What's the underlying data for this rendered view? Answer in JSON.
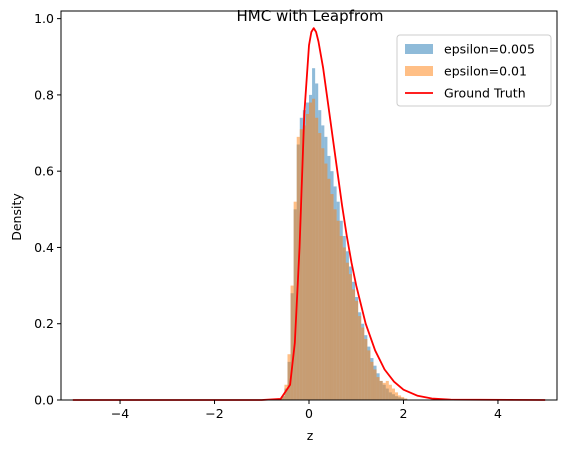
{
  "chart_data": {
    "type": "histogram",
    "title": "HMC with Leapfrom",
    "xlabel": "z",
    "ylabel": "Density",
    "xlim": [
      -5.25,
      5.25
    ],
    "ylim": [
      0.0,
      1.02
    ],
    "xticks": [
      -4,
      -2,
      0,
      2,
      4
    ],
    "xtick_labels": [
      "−4",
      "−2",
      "0",
      "2",
      "4"
    ],
    "yticks": [
      0.0,
      0.2,
      0.4,
      0.6,
      0.8,
      1.0
    ],
    "ytick_labels": [
      "0.0",
      "0.2",
      "0.4",
      "0.6",
      "0.8",
      "1.0"
    ],
    "legend_position": "top-right",
    "series": [
      {
        "name": "epsilon=0.005",
        "kind": "histogram",
        "color": "#1f77b4",
        "alpha": 0.5,
        "bin_start": -0.65,
        "bin_width": 0.065,
        "values": [
          0.0,
          0.01,
          0.03,
          0.1,
          0.28,
          0.5,
          0.67,
          0.74,
          0.76,
          0.78,
          0.8,
          0.87,
          0.83,
          0.76,
          0.72,
          0.69,
          0.64,
          0.6,
          0.56,
          0.52,
          0.47,
          0.43,
          0.39,
          0.35,
          0.31,
          0.27,
          0.23,
          0.2,
          0.17,
          0.14,
          0.11,
          0.09,
          0.07,
          0.05,
          0.04,
          0.03,
          0.02,
          0.015,
          0.01,
          0.007,
          0.005,
          0.003,
          0.0
        ]
      },
      {
        "name": "epsilon=0.01",
        "kind": "histogram",
        "color": "#ff7f0e",
        "alpha": 0.5,
        "bin_start": -0.65,
        "bin_width": 0.065,
        "values": [
          0.0,
          0.01,
          0.04,
          0.12,
          0.3,
          0.52,
          0.69,
          0.71,
          0.72,
          0.75,
          0.78,
          0.79,
          0.74,
          0.7,
          0.66,
          0.62,
          0.58,
          0.54,
          0.5,
          0.47,
          0.43,
          0.4,
          0.36,
          0.33,
          0.29,
          0.26,
          0.22,
          0.19,
          0.16,
          0.13,
          0.1,
          0.08,
          0.06,
          0.05,
          0.045,
          0.05,
          0.04,
          0.03,
          0.02,
          0.012,
          0.008,
          0.004,
          0.0
        ]
      },
      {
        "name": "Ground Truth",
        "kind": "line",
        "color": "#ff0000",
        "x": [
          -5.0,
          -1.0,
          -0.6,
          -0.4,
          -0.3,
          -0.2,
          -0.1,
          0.0,
          0.05,
          0.1,
          0.15,
          0.2,
          0.3,
          0.4,
          0.5,
          0.6,
          0.7,
          0.8,
          0.9,
          1.0,
          1.2,
          1.4,
          1.6,
          1.8,
          2.0,
          2.3,
          2.6,
          3.0,
          5.0
        ],
        "y": [
          0.0,
          0.0,
          0.003,
          0.04,
          0.15,
          0.4,
          0.75,
          0.93,
          0.965,
          0.975,
          0.965,
          0.94,
          0.87,
          0.78,
          0.69,
          0.6,
          0.51,
          0.43,
          0.36,
          0.3,
          0.2,
          0.13,
          0.08,
          0.048,
          0.027,
          0.011,
          0.004,
          0.001,
          0.0
        ]
      }
    ]
  }
}
